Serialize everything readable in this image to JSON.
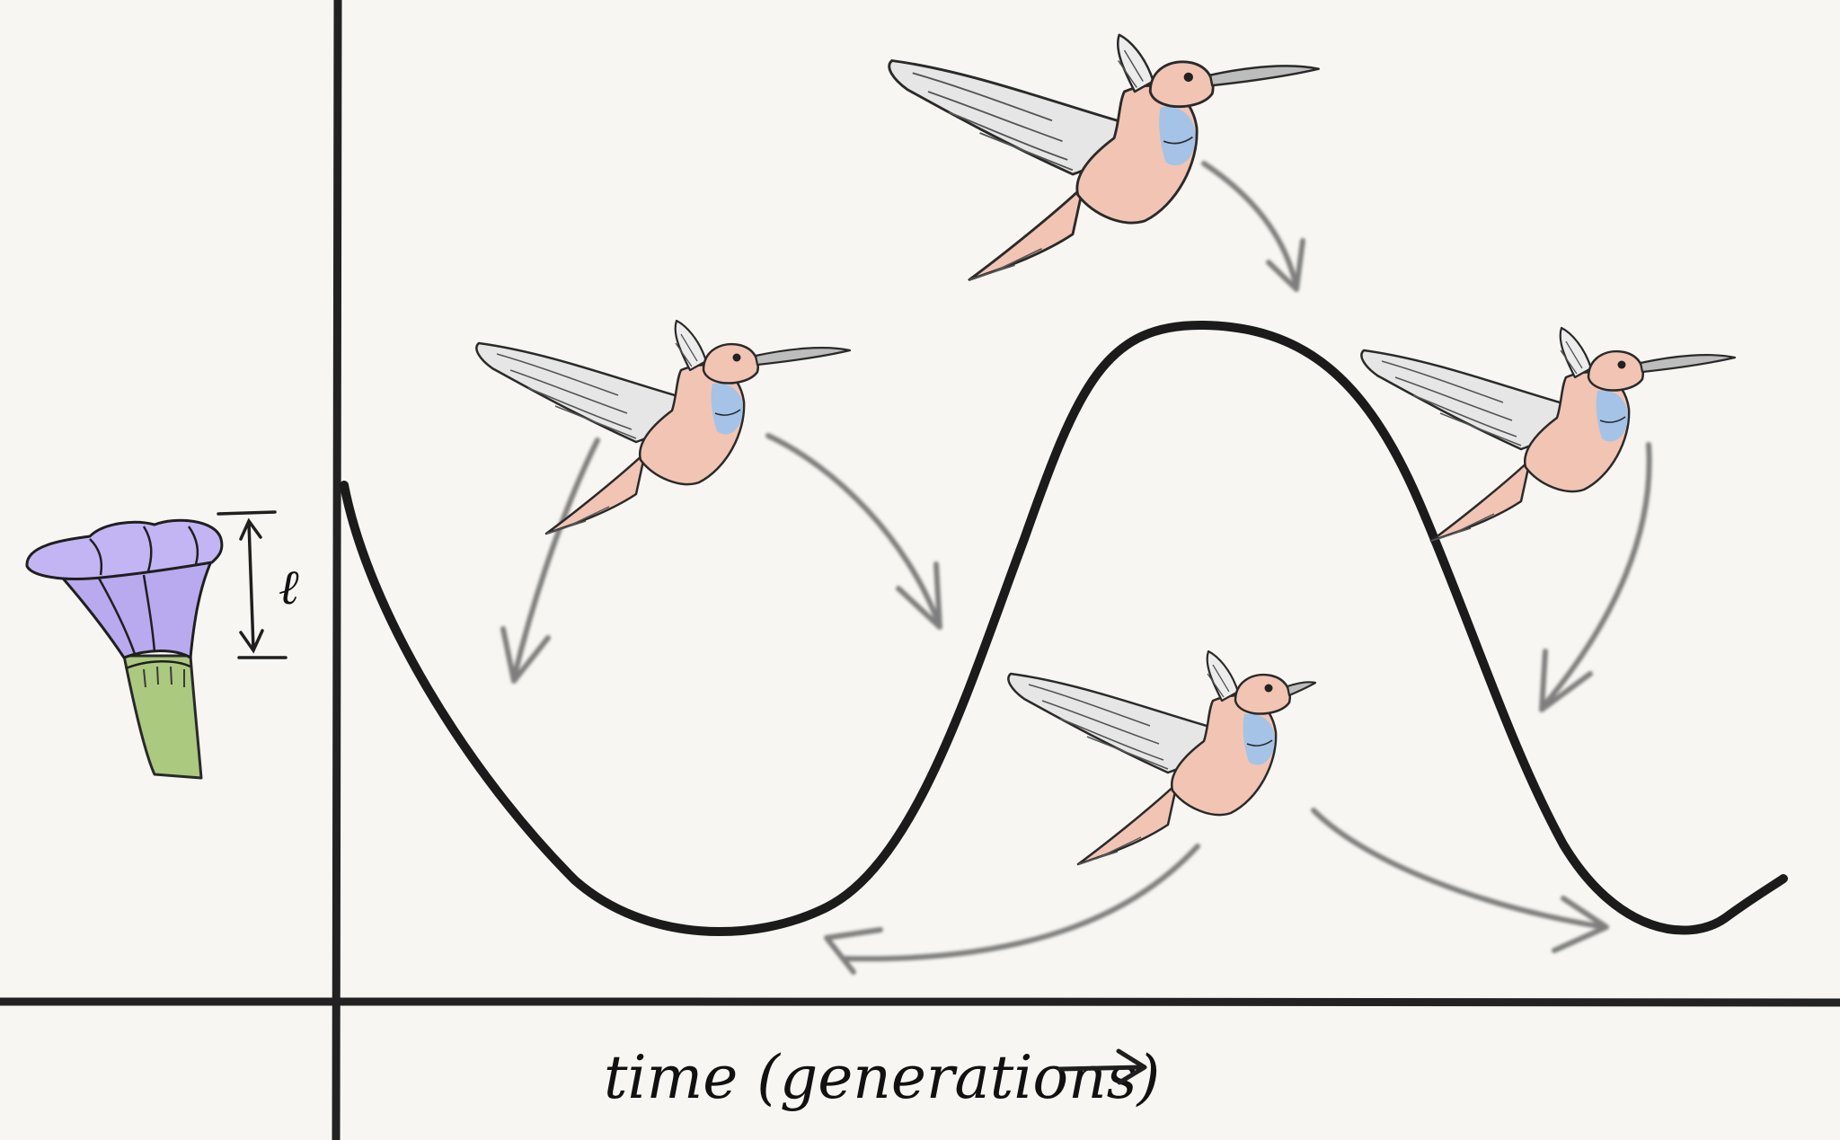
{
  "x_axis_label": "time (generations)",
  "flower_dimension_label": "ℓ",
  "palette": {
    "background": "#f7f6f2",
    "ink": "#1a1a1a",
    "arrow_gray": "#6b6b6b",
    "bird_body": "#f2c4b3",
    "bird_throat": "#9fc3ea",
    "bird_wing": "#e6e6e6",
    "flower_petal": "#b9a9ef",
    "flower_tube": "#a9c77a"
  },
  "icons": [
    "hummingbird-icon",
    "trumpet-flower-icon"
  ]
}
